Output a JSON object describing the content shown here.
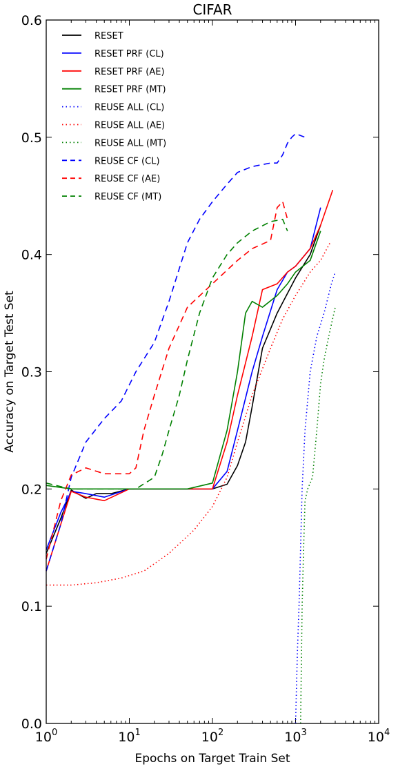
{
  "chart_data": {
    "type": "line",
    "title": "CIFAR",
    "xlabel": "Epochs on Target Train Set",
    "ylabel": "Accuracy on Target Test Set",
    "xscale": "log",
    "xlim": [
      1,
      10000
    ],
    "ylim": [
      0.0,
      0.6
    ],
    "grid": false,
    "legend_position": "upper-left",
    "x_tick_labels": [
      "10^0",
      "10^1",
      "10^2",
      "10^3",
      "10^4"
    ],
    "y_tick_labels": [
      "0.0",
      "0.1",
      "0.2",
      "0.3",
      "0.4",
      "0.5",
      "0.6"
    ],
    "series": [
      {
        "name": "RESET",
        "color": "#000000",
        "style": "solid",
        "x": [
          1,
          1.5,
          2,
          3,
          4,
          6,
          10,
          15,
          25,
          50,
          100,
          150,
          200,
          250,
          300,
          400,
          600,
          1000,
          1500,
          2000
        ],
        "y": [
          0.145,
          0.175,
          0.199,
          0.192,
          0.196,
          0.196,
          0.2,
          0.2,
          0.2,
          0.2,
          0.2,
          0.204,
          0.22,
          0.24,
          0.27,
          0.32,
          0.35,
          0.38,
          0.4,
          0.425
        ]
      },
      {
        "name": "RESET PRF (CL)",
        "color": "#0000ff",
        "style": "solid",
        "x": [
          1,
          1.5,
          2,
          3,
          5,
          10,
          20,
          50,
          100,
          150,
          200,
          300,
          400,
          600,
          800,
          1000,
          1500,
          2000
        ],
        "y": [
          0.148,
          0.18,
          0.198,
          0.196,
          0.193,
          0.2,
          0.2,
          0.2,
          0.2,
          0.215,
          0.25,
          0.3,
          0.33,
          0.37,
          0.385,
          0.39,
          0.405,
          0.44
        ]
      },
      {
        "name": "RESET PRF (AE)",
        "color": "#ff0000",
        "style": "solid",
        "x": [
          1,
          1.5,
          2,
          3,
          5,
          10,
          20,
          50,
          100,
          150,
          200,
          300,
          400,
          600,
          800,
          1000,
          1500,
          2000,
          2800
        ],
        "y": [
          0.13,
          0.17,
          0.198,
          0.193,
          0.19,
          0.2,
          0.2,
          0.2,
          0.2,
          0.24,
          0.28,
          0.33,
          0.37,
          0.375,
          0.385,
          0.39,
          0.405,
          0.425,
          0.455
        ]
      },
      {
        "name": "RESET PRF (MT)",
        "color": "#008000",
        "style": "solid",
        "x": [
          1,
          2,
          5,
          10,
          20,
          50,
          100,
          150,
          200,
          250,
          300,
          400,
          600,
          800,
          1000,
          1500,
          2000
        ],
        "y": [
          0.203,
          0.2,
          0.2,
          0.2,
          0.2,
          0.2,
          0.205,
          0.25,
          0.3,
          0.35,
          0.36,
          0.355,
          0.365,
          0.375,
          0.385,
          0.395,
          0.42
        ]
      },
      {
        "name": "REUSE ALL (CL)",
        "color": "#0000ff",
        "style": "dotted",
        "x": [
          1000,
          1050,
          1100,
          1150,
          1200,
          1300,
          1500,
          1800,
          2200,
          2700,
          3000
        ],
        "y": [
          0.0,
          0.06,
          0.1,
          0.15,
          0.2,
          0.25,
          0.3,
          0.33,
          0.35,
          0.375,
          0.385
        ]
      },
      {
        "name": "REUSE ALL (AE)",
        "color": "#ff0000",
        "style": "dotted",
        "x": [
          1,
          2,
          4,
          8,
          15,
          30,
          60,
          100,
          150,
          200,
          300,
          500,
          700,
          1000,
          1500,
          2000,
          2600
        ],
        "y": [
          0.118,
          0.118,
          0.12,
          0.124,
          0.13,
          0.145,
          0.165,
          0.185,
          0.21,
          0.24,
          0.28,
          0.32,
          0.345,
          0.365,
          0.385,
          0.395,
          0.41
        ]
      },
      {
        "name": "REUSE ALL (MT)",
        "color": "#008000",
        "style": "dotted",
        "x": [
          1150,
          1200,
          1250,
          1300,
          1400,
          1600,
          1800,
          2000,
          2200,
          2500,
          3000
        ],
        "y": [
          0.0,
          0.1,
          0.15,
          0.19,
          0.2,
          0.21,
          0.25,
          0.29,
          0.31,
          0.33,
          0.355
        ]
      },
      {
        "name": "REUSE CF (CL)",
        "color": "#0000ff",
        "style": "dashed",
        "x": [
          1,
          1.5,
          2,
          3,
          5,
          8,
          12,
          20,
          30,
          50,
          70,
          100,
          150,
          200,
          300,
          500,
          600,
          700,
          800,
          900,
          1000,
          1300
        ],
        "y": [
          0.13,
          0.17,
          0.21,
          0.24,
          0.26,
          0.275,
          0.3,
          0.325,
          0.36,
          0.41,
          0.43,
          0.445,
          0.46,
          0.47,
          0.475,
          0.478,
          0.478,
          0.485,
          0.495,
          0.5,
          0.503,
          0.5
        ]
      },
      {
        "name": "REUSE CF (AE)",
        "color": "#ff0000",
        "style": "dashed",
        "x": [
          1,
          1.5,
          2,
          3,
          5,
          10,
          12,
          15,
          20,
          30,
          50,
          100,
          200,
          300,
          500,
          600,
          700,
          800
        ],
        "y": [
          0.14,
          0.19,
          0.212,
          0.218,
          0.213,
          0.213,
          0.218,
          0.25,
          0.28,
          0.32,
          0.355,
          0.375,
          0.395,
          0.405,
          0.412,
          0.44,
          0.445,
          0.43
        ]
      },
      {
        "name": "REUSE CF (MT)",
        "color": "#008000",
        "style": "dashed",
        "x": [
          1,
          1.5,
          2,
          3,
          5,
          8,
          12,
          20,
          25,
          30,
          40,
          50,
          70,
          100,
          150,
          200,
          300,
          500,
          700,
          800
        ],
        "y": [
          0.205,
          0.202,
          0.2,
          0.2,
          0.2,
          0.2,
          0.2,
          0.21,
          0.23,
          0.25,
          0.28,
          0.31,
          0.35,
          0.38,
          0.4,
          0.41,
          0.42,
          0.428,
          0.43,
          0.42
        ]
      }
    ]
  }
}
